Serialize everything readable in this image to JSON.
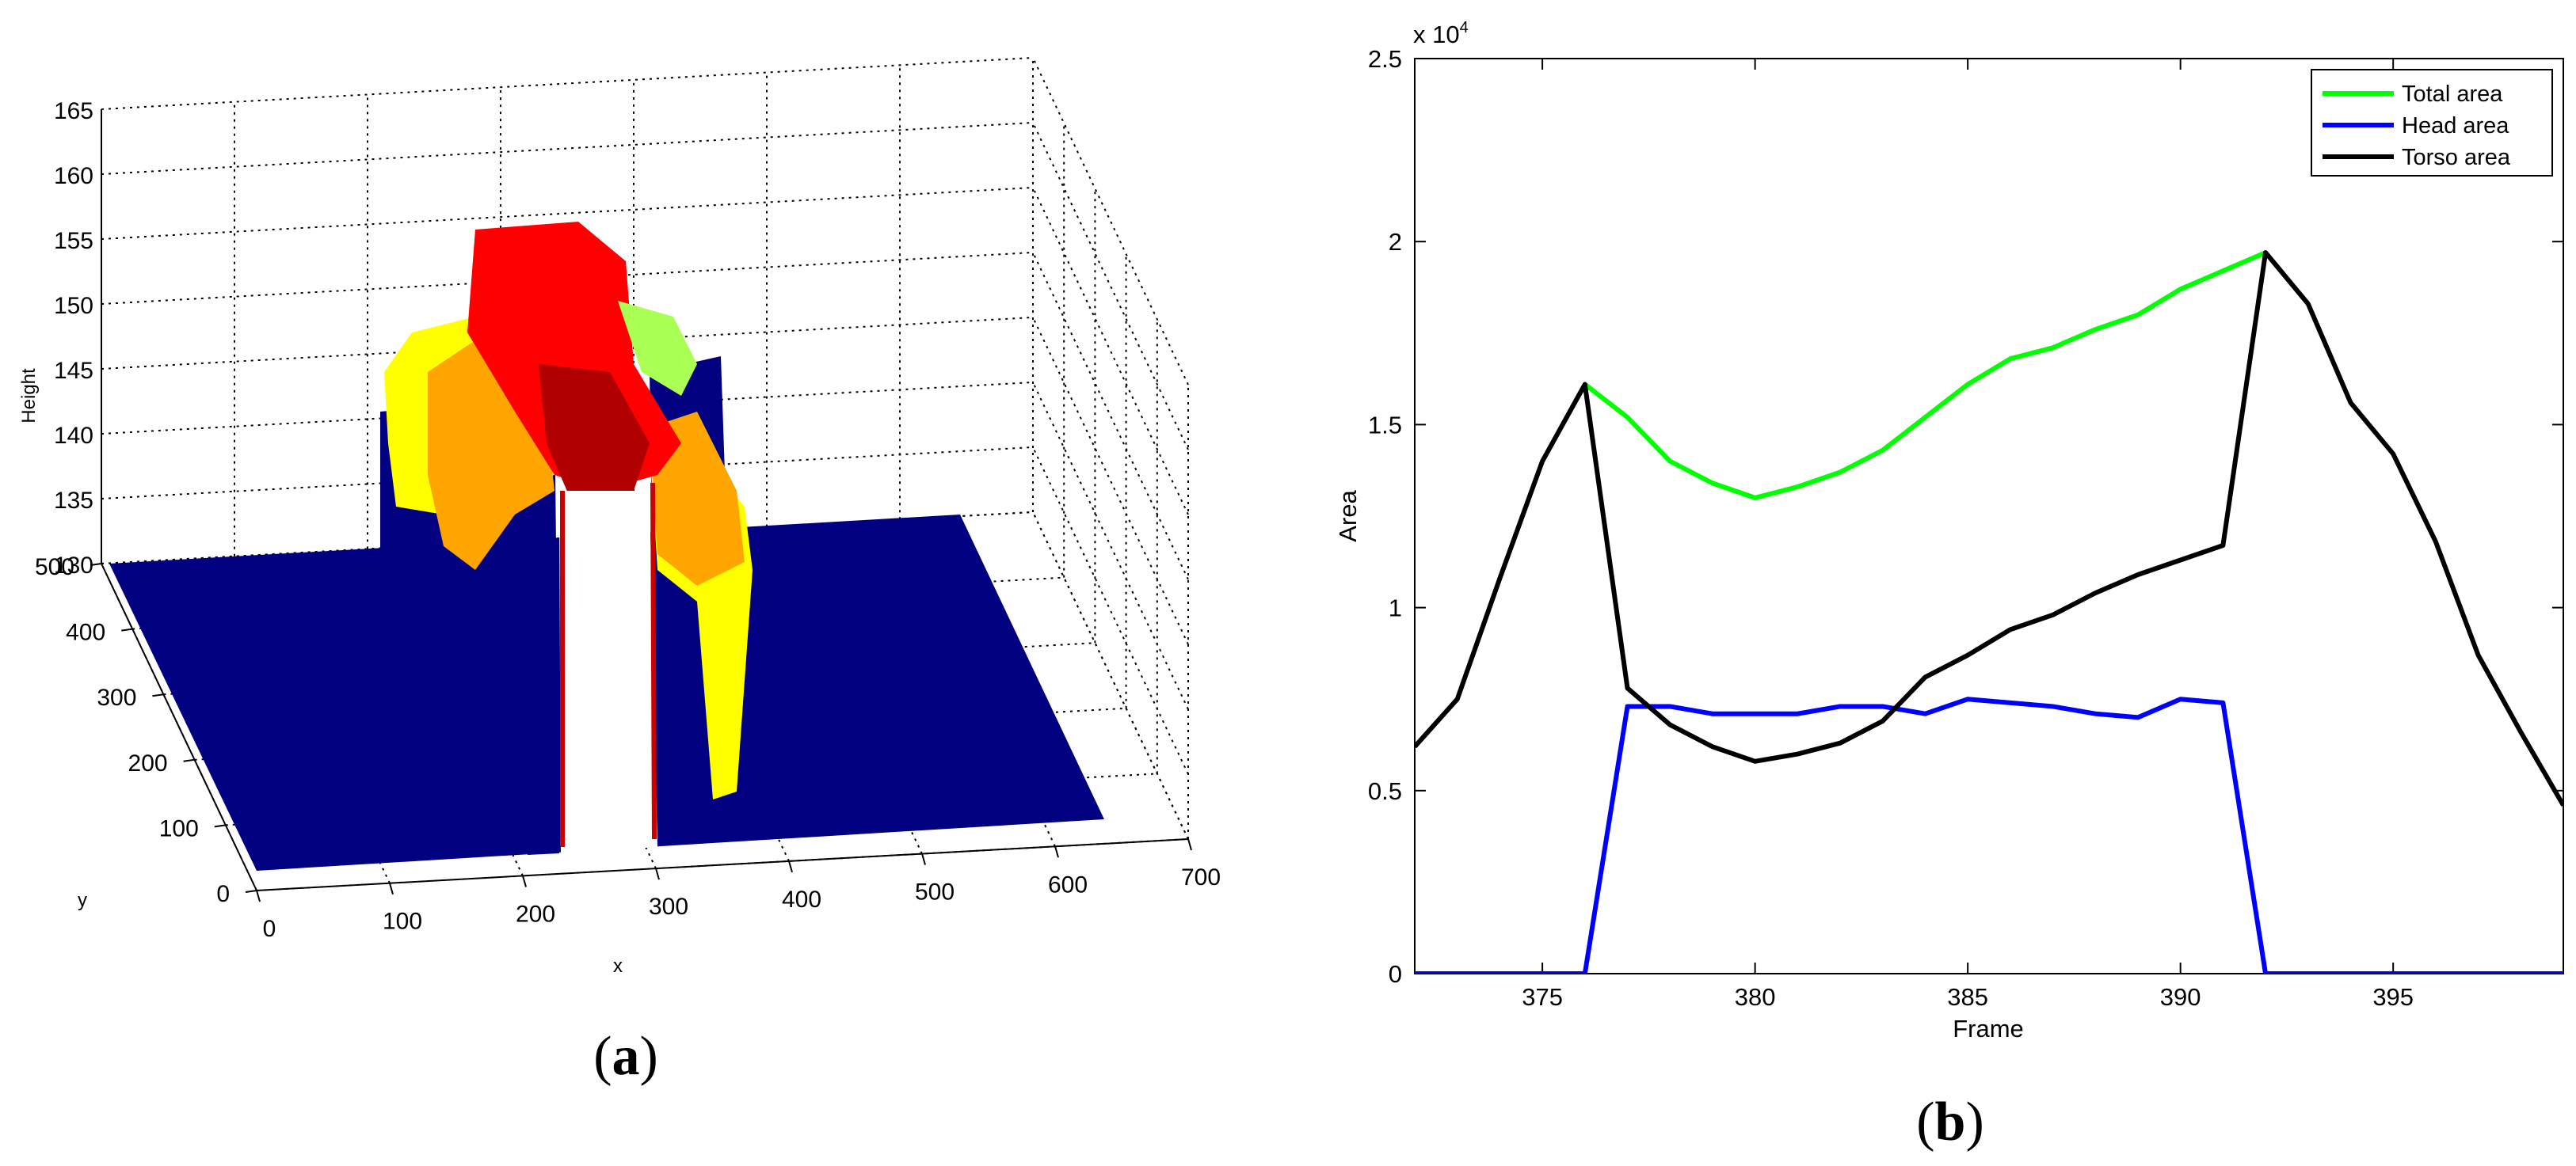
{
  "chart_data": [
    {
      "type": "surface",
      "panel_label": "a",
      "xlabel": "x",
      "ylabel": "y",
      "zlabel": "Height",
      "xlim": [
        0,
        700
      ],
      "ylim": [
        0,
        500
      ],
      "zlim": [
        130,
        165
      ],
      "x_ticks": [
        "0",
        "100",
        "200",
        "300",
        "400",
        "500",
        "600",
        "700"
      ],
      "y_ticks": [
        "0",
        "100",
        "200",
        "300",
        "400",
        "500"
      ],
      "z_ticks": [
        "130",
        "135",
        "140",
        "145",
        "150",
        "155",
        "160",
        "165"
      ],
      "grid": true,
      "colormap": "jet",
      "floor_color": "#000080",
      "dominant_colors": [
        "#000080",
        "#ffff00",
        "#ffa500",
        "#ff0000",
        "#b00000"
      ]
    },
    {
      "type": "line",
      "panel_label": "b",
      "xlabel": "Frame",
      "ylabel": "Area",
      "exponent_label": "x 10",
      "exponent_power": "4",
      "xlim": [
        372,
        399
      ],
      "ylim": [
        0,
        2.5
      ],
      "x_ticks": [
        "375",
        "380",
        "385",
        "390",
        "395"
      ],
      "y_ticks": [
        "0",
        "0.5",
        "1",
        "1.5",
        "2",
        "2.5"
      ],
      "grid": false,
      "legend_position": "top-right",
      "x": [
        372,
        373,
        374,
        375,
        376,
        377,
        378,
        379,
        380,
        381,
        382,
        383,
        384,
        385,
        386,
        387,
        388,
        389,
        390,
        391,
        392,
        393,
        394,
        395,
        396,
        397,
        398,
        399
      ],
      "series": [
        {
          "name": "Total area",
          "color": "#00ff00",
          "x": [
            376,
            377,
            378,
            379,
            380,
            381,
            382,
            383,
            384,
            385,
            386,
            387,
            388,
            389,
            390,
            391,
            392
          ],
          "values": [
            1.61,
            1.52,
            1.4,
            1.34,
            1.3,
            1.33,
            1.37,
            1.43,
            1.52,
            1.61,
            1.68,
            1.71,
            1.76,
            1.8,
            1.87,
            1.92,
            1.97
          ]
        },
        {
          "name": "Head area",
          "color": "#0000ff",
          "x": [
            372,
            373,
            374,
            375,
            376,
            377,
            378,
            379,
            380,
            381,
            382,
            383,
            384,
            385,
            386,
            387,
            388,
            389,
            390,
            391,
            392,
            393,
            394,
            395,
            396,
            397,
            398,
            399
          ],
          "values": [
            0,
            0,
            0,
            0,
            0,
            0.73,
            0.73,
            0.71,
            0.71,
            0.71,
            0.73,
            0.73,
            0.71,
            0.75,
            0.74,
            0.73,
            0.71,
            0.7,
            0.75,
            0.74,
            0,
            0,
            0,
            0,
            0,
            0,
            0,
            0
          ]
        },
        {
          "name": "Torso area",
          "color": "#000000",
          "x": [
            372,
            373,
            374,
            375,
            376,
            377,
            378,
            379,
            380,
            381,
            382,
            383,
            384,
            385,
            386,
            387,
            388,
            389,
            390,
            391,
            392,
            393,
            394,
            395,
            396,
            397,
            398,
            399
          ],
          "values": [
            0.62,
            0.75,
            1.08,
            1.4,
            1.61,
            0.78,
            0.68,
            0.62,
            0.58,
            0.6,
            0.63,
            0.69,
            0.81,
            0.87,
            0.94,
            0.98,
            1.04,
            1.09,
            1.13,
            1.17,
            1.97,
            1.83,
            1.56,
            1.42,
            1.18,
            0.87,
            0.66,
            0.46
          ]
        }
      ]
    }
  ]
}
